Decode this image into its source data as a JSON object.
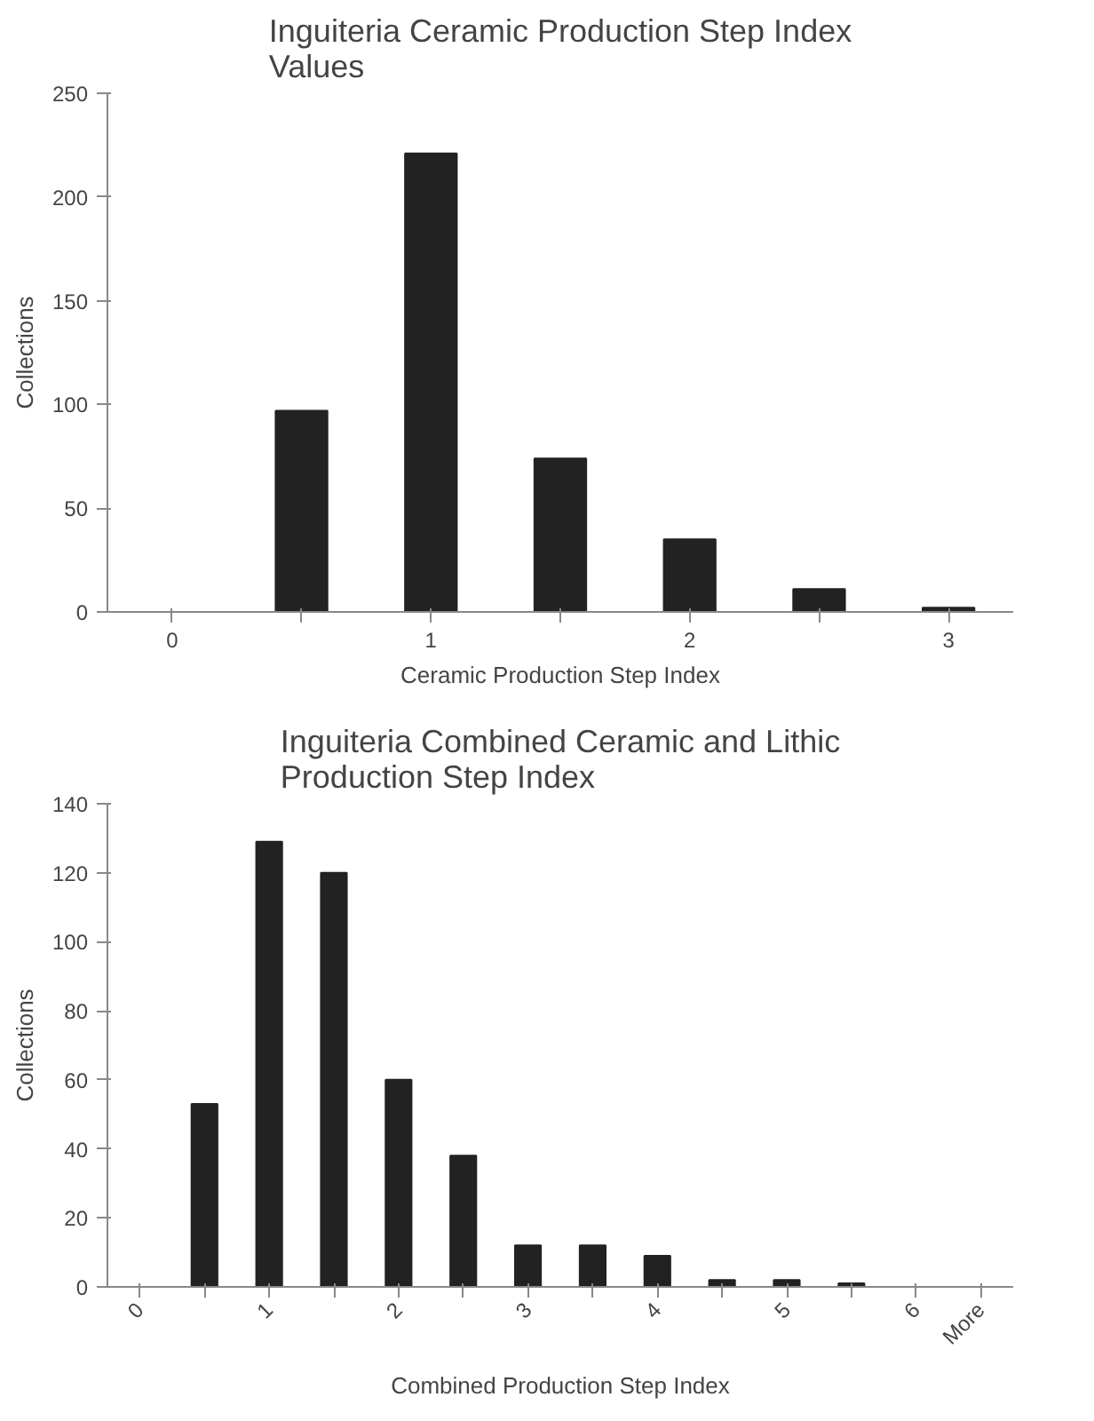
{
  "chart_data": [
    {
      "type": "bar",
      "title": "Inguiteria Ceramic Production Step Index\nValues",
      "xlabel": "Ceramic Production Step Index",
      "ylabel": "Collections",
      "categories": [
        "0",
        null,
        "1",
        null,
        "2",
        null,
        "3"
      ],
      "series": [
        {
          "color": "#222222",
          "values": [
            0,
            97,
            221,
            74,
            35,
            11,
            2
          ]
        }
      ],
      "ylim": [
        0,
        250
      ],
      "yticks": [
        0,
        50,
        100,
        150,
        200,
        250
      ],
      "grid": false
    },
    {
      "type": "bar",
      "title": "Inguiteria Combined Ceramic and Lithic\nProduction Step Index",
      "xlabel": "Combined Production Step Index",
      "ylabel": "Collections",
      "categories": [
        "0",
        null,
        "1",
        null,
        "2",
        null,
        "3",
        null,
        "4",
        null,
        "5",
        null,
        "6",
        "More"
      ],
      "series": [
        {
          "color": "#222222",
          "values": [
            0,
            53,
            129,
            120,
            60,
            38,
            12,
            12,
            9,
            2,
            2,
            1,
            0,
            0
          ]
        }
      ],
      "ylim": [
        0,
        140
      ],
      "yticks": [
        0,
        20,
        40,
        60,
        80,
        100,
        120,
        140
      ],
      "grid": false
    }
  ]
}
